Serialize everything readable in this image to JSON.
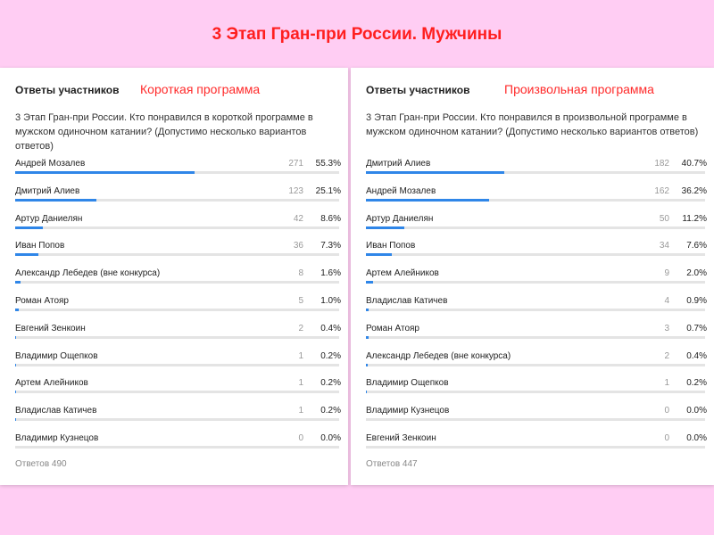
{
  "page": {
    "title": "3 Этап Гран-при России. Мужчины"
  },
  "panels": [
    {
      "heading": "Ответы участников",
      "program": "Короткая программа",
      "question": "3 Этап Гран-при России. Кто понравился в короткой программе в мужском одиночном катании? (Допустимо несколько вариантов ответов)",
      "rows": [
        {
          "name": "Андрей Мозалев",
          "count": "271",
          "percent": "55.3%",
          "value": 55.3
        },
        {
          "name": "Дмитрий Алиев",
          "count": "123",
          "percent": "25.1%",
          "value": 25.1
        },
        {
          "name": "Артур Даниелян",
          "count": "42",
          "percent": "8.6%",
          "value": 8.6
        },
        {
          "name": "Иван Попов",
          "count": "36",
          "percent": "7.3%",
          "value": 7.3
        },
        {
          "name": "Александр Лебедев (вне конкурса)",
          "count": "8",
          "percent": "1.6%",
          "value": 1.6
        },
        {
          "name": "Роман Атояр",
          "count": "5",
          "percent": "1.0%",
          "value": 1.0
        },
        {
          "name": "Евгений Зенкоин",
          "count": "2",
          "percent": "0.4%",
          "value": 0.4
        },
        {
          "name": "Владимир Ощепков",
          "count": "1",
          "percent": "0.2%",
          "value": 0.2
        },
        {
          "name": "Артем Алейников",
          "count": "1",
          "percent": "0.2%",
          "value": 0.2
        },
        {
          "name": "Владислав Катичев",
          "count": "1",
          "percent": "0.2%",
          "value": 0.2
        },
        {
          "name": "Владимир Кузнецов",
          "count": "0",
          "percent": "0.0%",
          "value": 0.0
        }
      ],
      "total": "Ответов 490"
    },
    {
      "heading": "Ответы участников",
      "program": "Произвольная программа",
      "question": "3 Этап Гран-при России. Кто понравился в произвольной программе в мужском одиночном катании? (Допустимо несколько вариантов ответов)",
      "rows": [
        {
          "name": "Дмитрий Алиев",
          "count": "182",
          "percent": "40.7%",
          "value": 40.7
        },
        {
          "name": "Андрей Мозалев",
          "count": "162",
          "percent": "36.2%",
          "value": 36.2
        },
        {
          "name": "Артур Даниелян",
          "count": "50",
          "percent": "11.2%",
          "value": 11.2
        },
        {
          "name": "Иван Попов",
          "count": "34",
          "percent": "7.6%",
          "value": 7.6
        },
        {
          "name": "Артем Алейников",
          "count": "9",
          "percent": "2.0%",
          "value": 2.0
        },
        {
          "name": "Владислав Катичев",
          "count": "4",
          "percent": "0.9%",
          "value": 0.9
        },
        {
          "name": "Роман Атояр",
          "count": "3",
          "percent": "0.7%",
          "value": 0.7
        },
        {
          "name": "Александр Лебедев (вне конкурса)",
          "count": "2",
          "percent": "0.4%",
          "value": 0.4
        },
        {
          "name": "Владимир Ощепков",
          "count": "1",
          "percent": "0.2%",
          "value": 0.2
        },
        {
          "name": "Владимир Кузнецов",
          "count": "0",
          "percent": "0.0%",
          "value": 0.0
        },
        {
          "name": "Евгений Зенкоин",
          "count": "0",
          "percent": "0.0%",
          "value": 0.0
        }
      ],
      "total": "Ответов 447"
    }
  ],
  "colors": {
    "background": "#ffcdf3",
    "title": "#ff1f1f",
    "program_label": "#ff2a2a",
    "bar_fill": "#2f86e8",
    "bar_track": "#e4e4e4"
  }
}
